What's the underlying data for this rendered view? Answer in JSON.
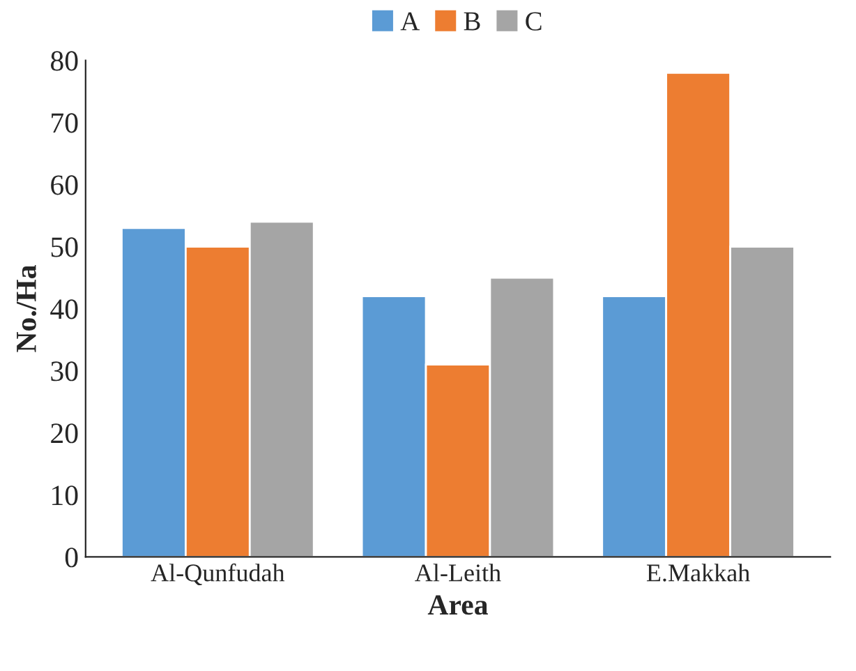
{
  "chart_data": {
    "type": "bar",
    "xlabel": "Area",
    "ylabel": "No./Ha",
    "categories": [
      "Al-Qunfudah",
      "Al-Leith",
      "E.Makkah"
    ],
    "series": [
      {
        "name": "A",
        "color": "#5b9bd5",
        "values": [
          53,
          42,
          42
        ]
      },
      {
        "name": "B",
        "color": "#ed7d31",
        "values": [
          50,
          31,
          78
        ]
      },
      {
        "name": "C",
        "color": "#a5a5a5",
        "values": [
          54,
          45,
          50
        ]
      }
    ],
    "ylim": [
      0,
      80
    ],
    "yticks": [
      0,
      10,
      20,
      30,
      40,
      50,
      60,
      70,
      80
    ],
    "grid": false,
    "legend": "top"
  }
}
